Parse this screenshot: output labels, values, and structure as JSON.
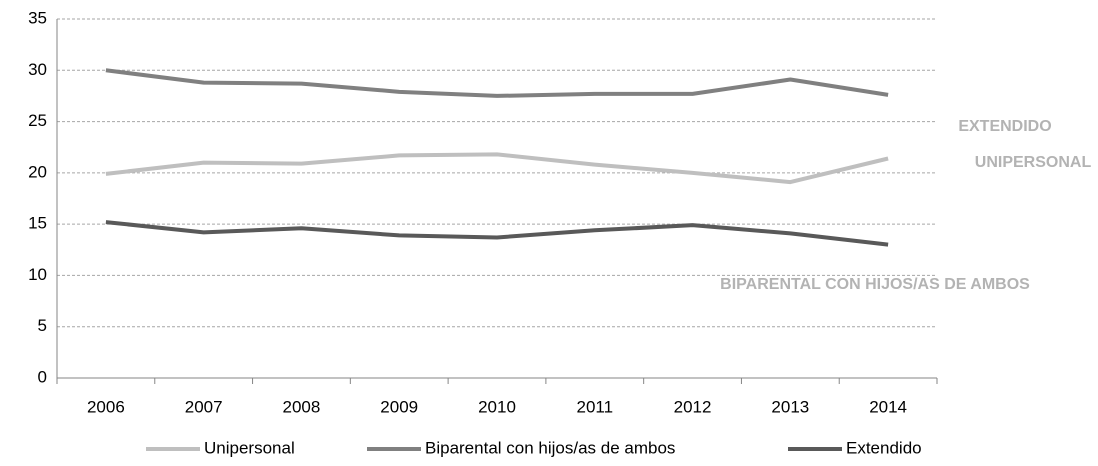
{
  "chart_data": {
    "type": "line",
    "categories": [
      "2006",
      "2007",
      "2008",
      "2009",
      "2010",
      "2011",
      "2012",
      "2013",
      "2014"
    ],
    "series": [
      {
        "name": "Unipersonal",
        "color": "#bfbfbf",
        "values": [
          19.9,
          21.0,
          20.9,
          21.7,
          21.8,
          20.8,
          20.0,
          19.1,
          21.4
        ]
      },
      {
        "name": "Biparental con hijos/as de ambos",
        "color": "#808080",
        "values": [
          30.0,
          28.8,
          28.7,
          27.9,
          27.5,
          27.7,
          27.7,
          29.1,
          27.6
        ]
      },
      {
        "name": "Extendido",
        "color": "#595959",
        "values": [
          15.2,
          14.2,
          14.6,
          13.9,
          13.7,
          14.4,
          14.9,
          14.1,
          13.0
        ]
      }
    ],
    "annotations": [
      "EXTENDIDO",
      "UNIPERSONAL",
      "BIPARENTAL CON HIJOS/AS DE AMBOS"
    ],
    "annotation_color": "#b3b3b3",
    "ylim": [
      0,
      35
    ],
    "yticks": [
      0,
      5,
      10,
      15,
      20,
      25,
      30,
      35
    ],
    "grid": true,
    "legend": "bottom"
  }
}
